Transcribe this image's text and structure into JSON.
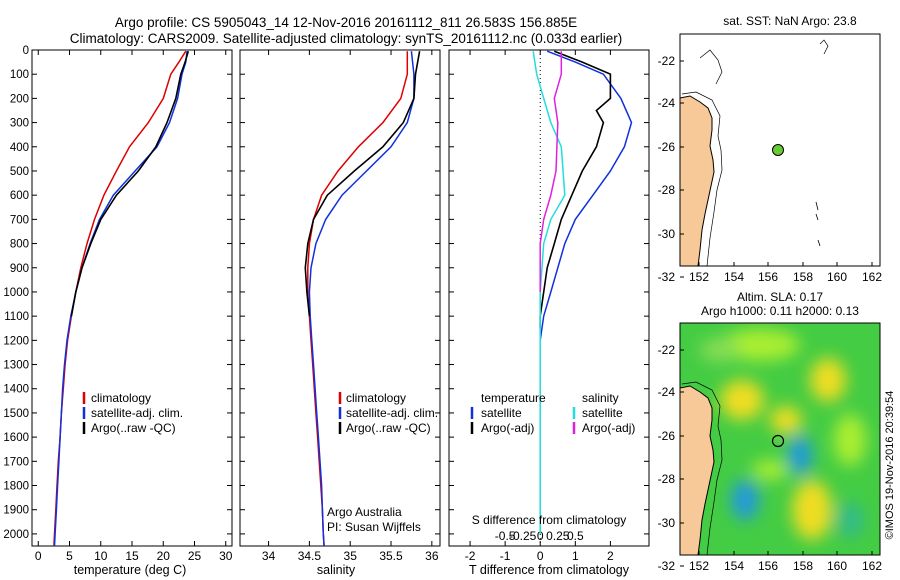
{
  "header": {
    "line1": "Argo profile: CS 5905043_14 12-Nov-2016 20161112_811 26.583S 156.885E",
    "line2": "Climatology: CARS2009. Satellite-adjusted climatology: synTS_20161112.nc (0.033d earlier)"
  },
  "colors": {
    "climatology": "#dd0000",
    "satellite": "#1030dd",
    "argo": "#000000",
    "salinity_satellite": "#22dddd",
    "salinity_argo": "#dd22dd",
    "land": "#f7c898"
  },
  "chart_data": [
    {
      "type": "line",
      "id": "temperature",
      "xlabel": "temperature (deg C)",
      "xlim": [
        -1,
        31
      ],
      "xticks": [
        0,
        5,
        10,
        15,
        20,
        25,
        30
      ],
      "ylim": [
        0,
        2050
      ],
      "yticks": [
        0,
        100,
        200,
        300,
        400,
        500,
        600,
        700,
        800,
        900,
        1000,
        1100,
        1200,
        1300,
        1400,
        1500,
        1600,
        1700,
        1800,
        1900,
        2000
      ],
      "legend": [
        "climatology",
        "satellite-adj. clim.",
        "Argo(..raw -QC)"
      ],
      "series": [
        {
          "name": "climatology",
          "color": "climatology",
          "points": [
            [
              23.6,
              5
            ],
            [
              22.5,
              50
            ],
            [
              21.2,
              100
            ],
            [
              20,
              200
            ],
            [
              17.6,
              300
            ],
            [
              14.6,
              400
            ],
            [
              12.5,
              500
            ],
            [
              10.5,
              600
            ],
            [
              9,
              700
            ],
            [
              7.8,
              800
            ],
            [
              6.8,
              900
            ],
            [
              6,
              1000
            ],
            [
              5.3,
              1100
            ],
            [
              4.7,
              1200
            ],
            [
              4.3,
              1300
            ],
            [
              4,
              1400
            ],
            [
              3.7,
              1500
            ],
            [
              3.5,
              1600
            ],
            [
              3.2,
              1700
            ],
            [
              3,
              1800
            ],
            [
              2.8,
              1900
            ],
            [
              2.6,
              2000
            ],
            [
              2.5,
              2050
            ]
          ]
        },
        {
          "name": "satellite-adj. clim.",
          "color": "satellite",
          "points": [
            [
              23.8,
              5
            ],
            [
              23.6,
              50
            ],
            [
              23,
              100
            ],
            [
              22.3,
              200
            ],
            [
              21,
              300
            ],
            [
              19,
              400
            ],
            [
              15.5,
              500
            ],
            [
              12,
              600
            ],
            [
              9.8,
              700
            ],
            [
              8.3,
              800
            ],
            [
              7,
              900
            ],
            [
              6,
              1000
            ],
            [
              5.2,
              1100
            ],
            [
              4.6,
              1200
            ],
            [
              4.2,
              1300
            ],
            [
              3.9,
              1400
            ],
            [
              3.7,
              1500
            ],
            [
              3.5,
              1600
            ],
            [
              3.3,
              1700
            ],
            [
              3.1,
              1800
            ],
            [
              2.9,
              1900
            ],
            [
              2.7,
              2000
            ],
            [
              2.6,
              2050
            ]
          ]
        },
        {
          "name": "Argo(..raw -QC)",
          "color": "argo",
          "points": [
            [
              24,
              5
            ],
            [
              23.5,
              50
            ],
            [
              22.8,
              100
            ],
            [
              22,
              200
            ],
            [
              20.6,
              300
            ],
            [
              18.8,
              400
            ],
            [
              16,
              500
            ],
            [
              12.5,
              600
            ],
            [
              10,
              700
            ],
            [
              8.4,
              800
            ],
            [
              7,
              900
            ],
            [
              6,
              1000
            ],
            [
              5.3,
              1100
            ]
          ]
        }
      ]
    },
    {
      "type": "line",
      "id": "salinity",
      "xlabel": "salinity",
      "xlim": [
        33.65,
        36.1
      ],
      "xticks": [
        34,
        34.5,
        35,
        35.5,
        36
      ],
      "ylim": [
        0,
        2050
      ],
      "legend": [
        "climatology",
        "satellite-adj. clim.",
        "Argo(..raw -QC)"
      ],
      "annotation": [
        "Argo Australia",
        "PI: Susan Wijffels"
      ],
      "series": [
        {
          "name": "climatology",
          "color": "climatology",
          "points": [
            [
              35.7,
              5
            ],
            [
              35.7,
              100
            ],
            [
              35.62,
              200
            ],
            [
              35.4,
              300
            ],
            [
              35.1,
              400
            ],
            [
              34.85,
              500
            ],
            [
              34.65,
              600
            ],
            [
              34.55,
              700
            ],
            [
              34.5,
              800
            ],
            [
              34.48,
              900
            ],
            [
              34.48,
              1000
            ],
            [
              34.5,
              1100
            ],
            [
              34.52,
              1200
            ],
            [
              34.54,
              1300
            ],
            [
              34.56,
              1400
            ],
            [
              34.58,
              1500
            ],
            [
              34.6,
              1600
            ],
            [
              34.62,
              1700
            ],
            [
              34.64,
              1800
            ],
            [
              34.66,
              1900
            ],
            [
              34.67,
              2000
            ],
            [
              34.68,
              2050
            ]
          ]
        },
        {
          "name": "satellite-adj. clim.",
          "color": "satellite",
          "points": [
            [
              35.75,
              5
            ],
            [
              35.78,
              100
            ],
            [
              35.78,
              200
            ],
            [
              35.7,
              300
            ],
            [
              35.5,
              400
            ],
            [
              35.2,
              500
            ],
            [
              34.9,
              600
            ],
            [
              34.7,
              700
            ],
            [
              34.58,
              800
            ],
            [
              34.52,
              900
            ],
            [
              34.5,
              1000
            ],
            [
              34.51,
              1100
            ],
            [
              34.53,
              1200
            ],
            [
              34.55,
              1300
            ],
            [
              34.57,
              1400
            ],
            [
              34.59,
              1500
            ],
            [
              34.61,
              1600
            ],
            [
              34.63,
              1700
            ],
            [
              34.65,
              1800
            ],
            [
              34.66,
              1900
            ],
            [
              34.67,
              2000
            ],
            [
              34.68,
              2050
            ]
          ]
        },
        {
          "name": "Argo(..raw -QC)",
          "color": "argo",
          "points": [
            [
              35.85,
              5
            ],
            [
              35.8,
              100
            ],
            [
              35.78,
              200
            ],
            [
              35.65,
              300
            ],
            [
              35.4,
              400
            ],
            [
              35.05,
              500
            ],
            [
              34.72,
              600
            ],
            [
              34.55,
              700
            ],
            [
              34.48,
              800
            ],
            [
              34.45,
              900
            ],
            [
              34.47,
              1000
            ],
            [
              34.5,
              1100
            ]
          ]
        }
      ]
    },
    {
      "type": "line",
      "id": "difference",
      "xlabel": "T difference from climatology",
      "xlabel_top": "S difference from climatology",
      "xlim": [
        -2.6,
        3.1
      ],
      "xticks": [
        -2,
        -1,
        0,
        1,
        2
      ],
      "xticks_salinity": [
        "-0.5",
        "-0.25",
        "0",
        "0.25",
        "0.5"
      ],
      "ylim": [
        0,
        2050
      ],
      "legend_temperature": {
        "title": "temperature",
        "items": [
          "satellite",
          "Argo(-adj)"
        ]
      },
      "legend_salinity": {
        "title": "salinity",
        "items": [
          "satellite",
          "Argo(-adj)"
        ]
      },
      "series": [
        {
          "name": "temperature satellite",
          "color": "satellite",
          "points": [
            [
              0.2,
              5
            ],
            [
              1,
              50
            ],
            [
              1.8,
              100
            ],
            [
              2.3,
              200
            ],
            [
              2.6,
              300
            ],
            [
              2.4,
              400
            ],
            [
              2,
              500
            ],
            [
              1.5,
              600
            ],
            [
              1,
              700
            ],
            [
              0.7,
              800
            ],
            [
              0.5,
              900
            ],
            [
              0.3,
              1000
            ],
            [
              0.1,
              1100
            ],
            [
              0,
              1200
            ]
          ]
        },
        {
          "name": "temperature Argo(-adj)",
          "color": "argo",
          "points": [
            [
              0.4,
              5
            ],
            [
              1.2,
              50
            ],
            [
              2,
              100
            ],
            [
              2,
              200
            ],
            [
              1.6,
              250
            ],
            [
              1.8,
              300
            ],
            [
              1.6,
              400
            ],
            [
              1.2,
              500
            ],
            [
              0.9,
              600
            ],
            [
              0.6,
              700
            ],
            [
              0.4,
              800
            ],
            [
              0.2,
              900
            ],
            [
              0.1,
              1000
            ],
            [
              0,
              1100
            ],
            [
              0,
              1150
            ]
          ]
        },
        {
          "name": "salinity satellite",
          "color": "salinity_satellite",
          "points": [
            [
              -0.2,
              5
            ],
            [
              -0.1,
              100
            ],
            [
              0.3,
              300
            ],
            [
              0.6,
              400
            ],
            [
              0.7,
              600
            ],
            [
              0.3,
              700
            ],
            [
              0.1,
              800
            ],
            [
              0,
              1000
            ],
            [
              0,
              1400
            ],
            [
              0,
              2000
            ]
          ]
        },
        {
          "name": "salinity Argo(-adj)",
          "color": "salinity_argo",
          "points": [
            [
              0.6,
              5
            ],
            [
              0.6,
              100
            ],
            [
              0.4,
              200
            ],
            [
              0.5,
              300
            ],
            [
              0.45,
              500
            ],
            [
              0.3,
              600
            ],
            [
              0.1,
              700
            ],
            [
              0,
              800
            ],
            [
              0,
              1000
            ]
          ]
        }
      ]
    }
  ],
  "map_top": {
    "title": "sat. SST: NaN Argo: 23.8",
    "xticks": [
      "152",
      "154",
      "156",
      "158",
      "160",
      "162"
    ],
    "yticks": [
      "-22",
      "-24",
      "-26",
      "-28",
      "-30",
      "-32"
    ]
  },
  "map_bottom": {
    "title1": "Altim. SLA: 0.17",
    "title2": "Argo h1000: 0.11 h2000: 0.13",
    "xticks": [
      "152",
      "154",
      "156",
      "158",
      "160",
      "162"
    ],
    "yticks": [
      "-22",
      "-24",
      "-26",
      "-28",
      "-30",
      "-32"
    ]
  },
  "footer": {
    "credit": "©IMOS 19-Nov-2016 20:39:54"
  }
}
